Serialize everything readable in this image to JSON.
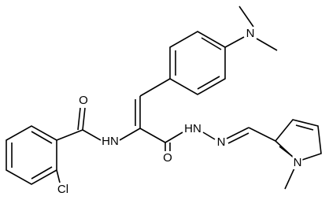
{
  "atom_labels": [
    "O",
    "HN",
    "O",
    "HN",
    "N",
    "N",
    "N",
    "Cl"
  ]
}
